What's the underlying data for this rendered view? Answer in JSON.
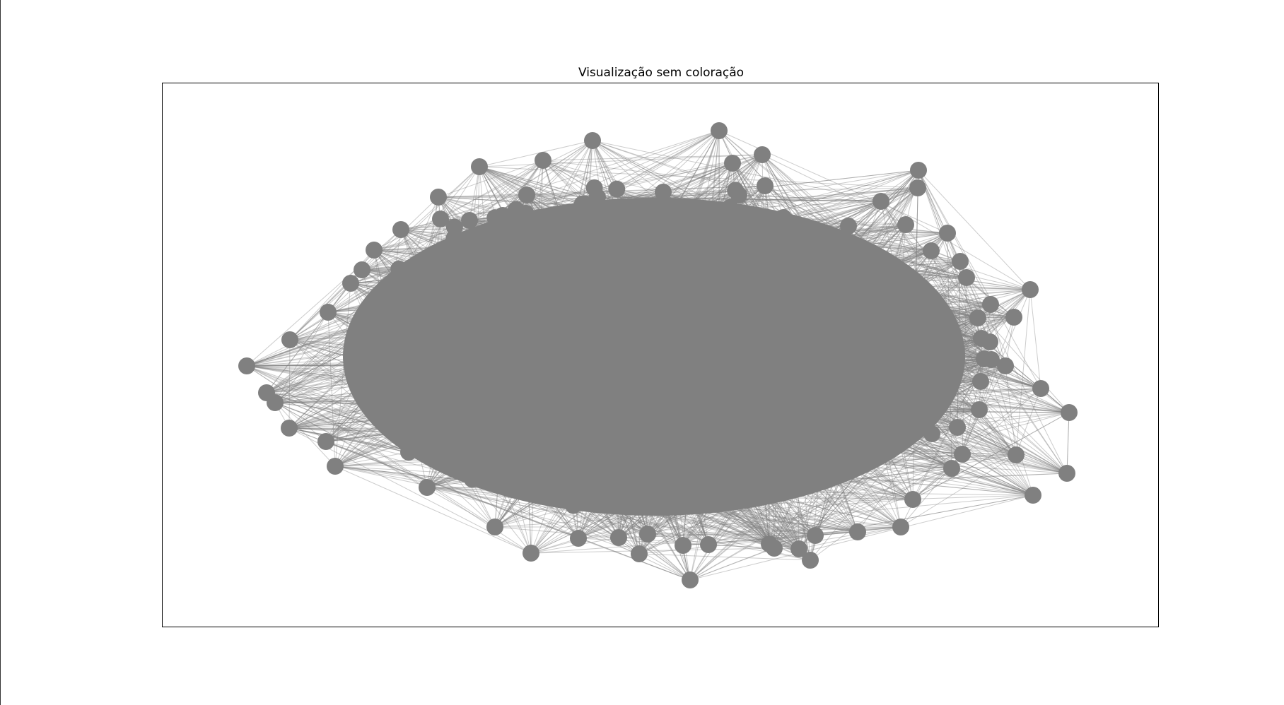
{
  "figure": {
    "title": "Visualização sem coloração"
  },
  "graph": {
    "node_color": "#808080",
    "edge_color": "#808080",
    "border_color": "#000000"
  }
}
